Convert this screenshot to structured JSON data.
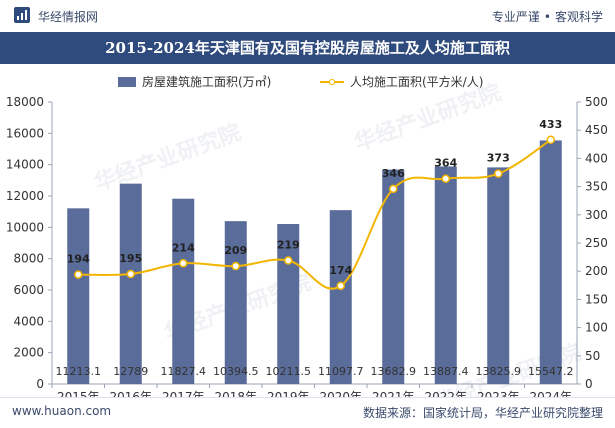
{
  "header": {
    "brand": "华经情报网",
    "slogan_left": "专业严谨",
    "slogan_sep": "•",
    "slogan_right": "客观科学"
  },
  "title": "2015-2024年天津国有及国有控股房屋施工及人均施工面积",
  "footer": {
    "site": "www.huaon.com",
    "source": "数据来源：国家统计局，华经产业研究院整理"
  },
  "watermark": "华经产业研究院",
  "colors": {
    "bar": "#5a6c99",
    "line": "#f2b600",
    "title_bg": "#2f4a7c"
  },
  "chart_data": {
    "type": "bar",
    "categories": [
      "2015年",
      "2016年",
      "2017年",
      "2018年",
      "2019年",
      "2020年",
      "2021年",
      "2022年",
      "2023年",
      "2024年"
    ],
    "series": [
      {
        "name": "房屋建筑施工面积(万㎡)",
        "type": "bar",
        "axis": "left",
        "values": [
          11213.1,
          12789,
          11827.4,
          10394.5,
          10211.5,
          11097.7,
          13682.9,
          13887.4,
          13825.9,
          15547.2
        ],
        "labels": [
          "11213.1",
          "12789",
          "11827.4",
          "10394.5",
          "10211.5",
          "11097.7",
          "13682.9",
          "13887.4",
          "13825.9",
          "15547.2"
        ]
      },
      {
        "name": "人均施工面积(平方米/人)",
        "type": "line",
        "axis": "right",
        "values": [
          194,
          195,
          214,
          209,
          219,
          174,
          346,
          364,
          373,
          433
        ],
        "labels": [
          "194",
          "195",
          "214",
          "209",
          "219",
          "174",
          "346",
          "364",
          "373",
          "433"
        ]
      }
    ],
    "y_left": {
      "min": 0,
      "max": 18000,
      "ticks": [
        "0",
        "2000",
        "4000",
        "6000",
        "8000",
        "10000",
        "12000",
        "14000",
        "16000",
        "18000"
      ]
    },
    "y_right": {
      "min": 0,
      "max": 500,
      "ticks": [
        "0",
        "50",
        "100",
        "150",
        "200",
        "250",
        "300",
        "350",
        "400",
        "450",
        "500"
      ]
    },
    "legend_position": "top-center",
    "grid": false
  }
}
